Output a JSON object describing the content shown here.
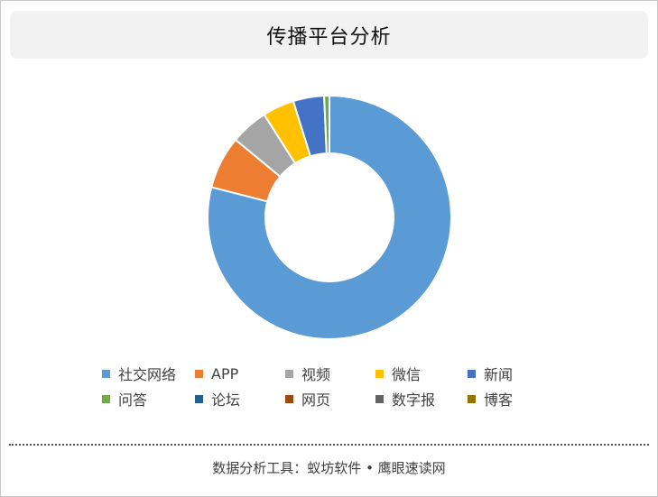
{
  "chart_data": {
    "type": "pie",
    "title": "传播平台分析",
    "donut": true,
    "legend_position": "bottom",
    "categories": [
      "社交网络",
      "APP",
      "视频",
      "微信",
      "新闻",
      "问答",
      "论坛",
      "网页",
      "数字报",
      "博客"
    ],
    "values": [
      79.0,
      7.0,
      5.0,
      4.2,
      4.1,
      0.7,
      0.0,
      0.0,
      0.0,
      0.0
    ],
    "colors": [
      "#5b9bd5",
      "#ed7d31",
      "#a5a5a5",
      "#ffc000",
      "#4472c4",
      "#70ad47",
      "#255e91",
      "#9e480e",
      "#636363",
      "#997300"
    ]
  },
  "footer": {
    "text": "数据分析工具：蚁坊软件 • 鹰眼速读网"
  }
}
